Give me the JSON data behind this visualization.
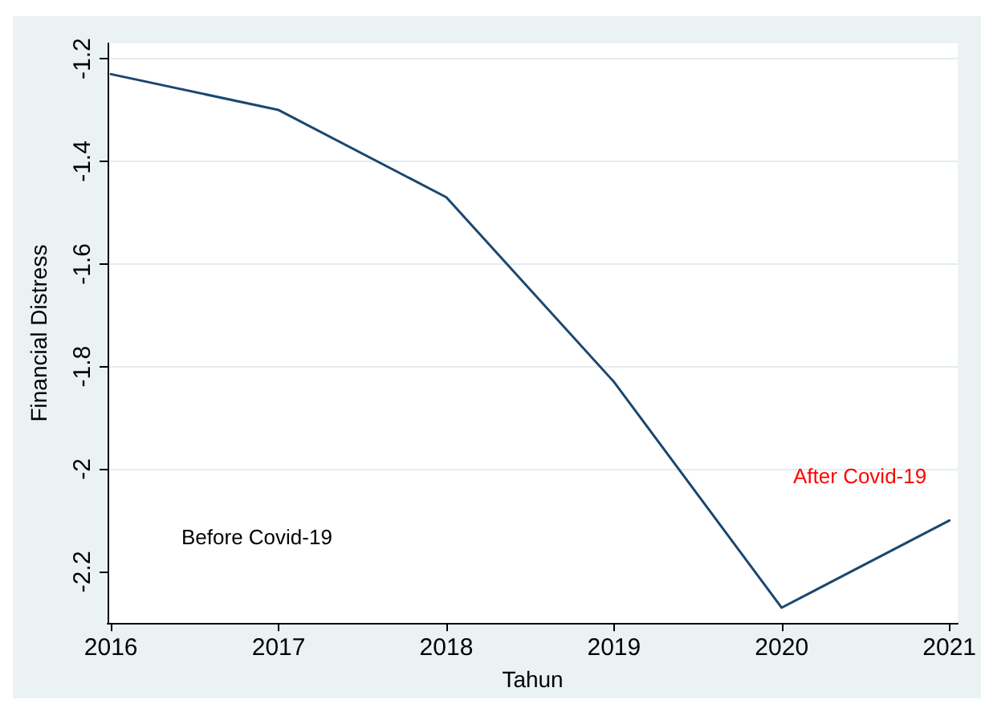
{
  "chart_data": {
    "type": "line",
    "xlabel": "Tahun",
    "ylabel": "Financial Distress",
    "x": [
      2016,
      2017,
      2018,
      2019,
      2020,
      2021
    ],
    "series": [
      {
        "color": "#1a476f",
        "values": [
          -1.23,
          -1.3,
          -1.47,
          -1.83,
          -2.27,
          -2.1
        ]
      }
    ],
    "xlim": [
      2015.98,
      2021.05
    ],
    "xticks": [
      2016,
      2017,
      2018,
      2019,
      2020,
      2021
    ],
    "ylim": [
      -2.3,
      -1.17
    ],
    "yticks": [
      -2.2,
      -2,
      -1.8,
      -1.6,
      -1.4,
      -1.2
    ],
    "grid": "y",
    "marker": "none",
    "line_style": "solid",
    "annotations": [
      "Before Covid-19",
      "After Covid-19"
    ]
  }
}
